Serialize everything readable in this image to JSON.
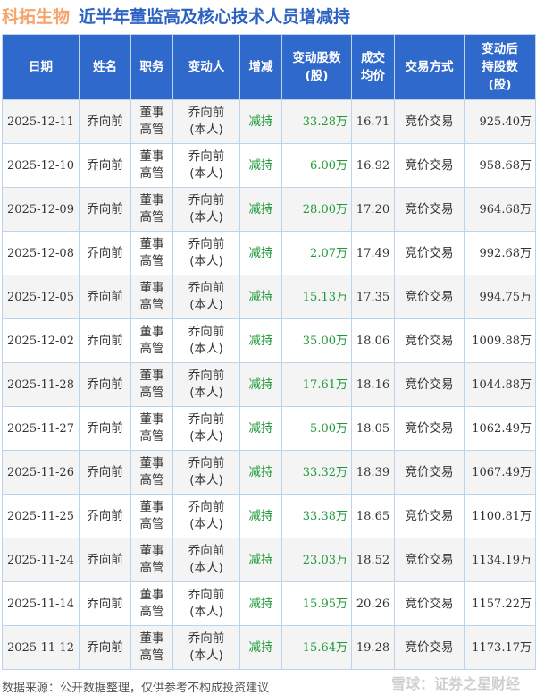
{
  "title": {
    "brand": "科拓生物",
    "subtitle": "近半年董监高及核心技术人员增减持"
  },
  "colors": {
    "header_bg": "#2f69cc",
    "brand": "#f5a46c",
    "subtitle": "#2c62c2",
    "reduce": "#1f9a3a"
  },
  "columns": [
    "日期",
    "姓名",
    "职务",
    "变动人",
    "增减",
    "变动股数\n(股)",
    "成交\n均价",
    "交易方式",
    "变动后\n持股数\n(股)"
  ],
  "rows": [
    [
      "2025-12-11",
      "乔向前",
      "董事\n高管",
      "乔向前\n(本人)",
      "减持",
      "33.28万",
      "16.71",
      "竞价交易",
      "925.40万"
    ],
    [
      "2025-12-10",
      "乔向前",
      "董事\n高管",
      "乔向前\n(本人)",
      "减持",
      "6.00万",
      "16.92",
      "竞价交易",
      "958.68万"
    ],
    [
      "2025-12-09",
      "乔向前",
      "董事\n高管",
      "乔向前\n(本人)",
      "减持",
      "28.00万",
      "17.20",
      "竞价交易",
      "964.68万"
    ],
    [
      "2025-12-08",
      "乔向前",
      "董事\n高管",
      "乔向前\n(本人)",
      "减持",
      "2.07万",
      "17.49",
      "竞价交易",
      "992.68万"
    ],
    [
      "2025-12-05",
      "乔向前",
      "董事\n高管",
      "乔向前\n(本人)",
      "减持",
      "15.13万",
      "17.35",
      "竞价交易",
      "994.75万"
    ],
    [
      "2025-12-02",
      "乔向前",
      "董事\n高管",
      "乔向前\n(本人)",
      "减持",
      "35.00万",
      "18.06",
      "竞价交易",
      "1009.88万"
    ],
    [
      "2025-11-28",
      "乔向前",
      "董事\n高管",
      "乔向前\n(本人)",
      "减持",
      "17.61万",
      "18.16",
      "竞价交易",
      "1044.88万"
    ],
    [
      "2025-11-27",
      "乔向前",
      "董事\n高管",
      "乔向前\n(本人)",
      "减持",
      "5.00万",
      "18.05",
      "竞价交易",
      "1062.49万"
    ],
    [
      "2025-11-26",
      "乔向前",
      "董事\n高管",
      "乔向前\n(本人)",
      "减持",
      "33.32万",
      "18.39",
      "竞价交易",
      "1067.49万"
    ],
    [
      "2025-11-25",
      "乔向前",
      "董事\n高管",
      "乔向前\n(本人)",
      "减持",
      "33.38万",
      "18.65",
      "竞价交易",
      "1100.81万"
    ],
    [
      "2025-11-24",
      "乔向前",
      "董事\n高管",
      "乔向前\n(本人)",
      "减持",
      "23.03万",
      "18.52",
      "竞价交易",
      "1134.19万"
    ],
    [
      "2025-11-14",
      "乔向前",
      "董事\n高管",
      "乔向前\n(本人)",
      "减持",
      "15.95万",
      "20.26",
      "竞价交易",
      "1157.22万"
    ],
    [
      "2025-11-12",
      "乔向前",
      "董事\n高管",
      "乔向前\n(本人)",
      "减持",
      "15.64万",
      "19.28",
      "竞价交易",
      "1173.17万"
    ]
  ],
  "footer": "数据来源：公开数据整理，仅供参考不构成投资建议",
  "watermark": "雪球：证券之星财经"
}
